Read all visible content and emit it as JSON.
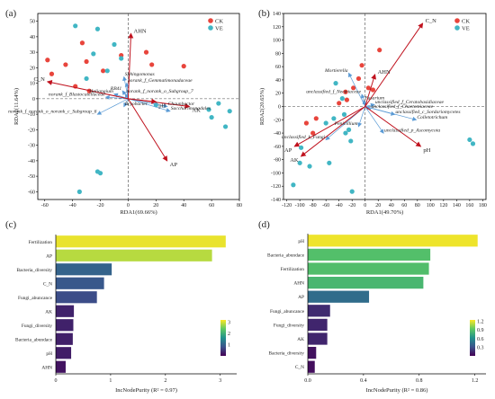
{
  "colors": {
    "CK": "#e8453c",
    "VE": "#41b6c4",
    "arrow_env": "#c0121e",
    "arrow_taxa": "#5b9bd5",
    "spine": "#000000"
  },
  "chart_data": [
    {
      "panel": "(a)",
      "type": "scatter",
      "xlabel": "RDA1(69.66%)",
      "ylabel": "RDA2(11.64%)",
      "xlim": [
        -65,
        80
      ],
      "ylim": [
        -65,
        55
      ],
      "xticks": [
        "-60",
        "-40",
        "-20",
        "0",
        "20",
        "40",
        "60",
        "80"
      ],
      "yticks": [
        "-60",
        "-50",
        "-40",
        "-30",
        "-20",
        "-10",
        "0",
        "10",
        "20",
        "30",
        "40",
        "50"
      ],
      "legend": [
        "CK",
        "VE"
      ],
      "points": {
        "CK": [
          [
            -58,
            25
          ],
          [
            -55,
            16
          ],
          [
            -45,
            22
          ],
          [
            -33,
            36
          ],
          [
            -30,
            24
          ],
          [
            -18,
            18
          ],
          [
            -5,
            28
          ],
          [
            13,
            30
          ],
          [
            17,
            22
          ],
          [
            40,
            21
          ],
          [
            -38,
            8
          ],
          [
            -28,
            5
          ]
        ],
        "VE": [
          [
            -38,
            47
          ],
          [
            -22,
            45
          ],
          [
            -25,
            29
          ],
          [
            -15,
            18
          ],
          [
            -10,
            35
          ],
          [
            -5,
            26
          ],
          [
            -30,
            13
          ],
          [
            58,
            -7
          ],
          [
            60,
            -12
          ],
          [
            65,
            -3
          ],
          [
            70,
            -18
          ],
          [
            73,
            -8
          ],
          [
            -20,
            -48
          ],
          [
            -22,
            -47
          ],
          [
            -35,
            -60
          ],
          [
            20,
            -4
          ]
        ]
      },
      "env_arrows": [
        {
          "label": "AHN",
          "x": 2,
          "y": 42
        },
        {
          "label": "C_N",
          "x": -58,
          "y": 11
        },
        {
          "label": "pH",
          "x": 20,
          "y": -2
        },
        {
          "label": "AK",
          "x": 44,
          "y": -5
        },
        {
          "label": "AP",
          "x": 28,
          "y": -40
        }
      ],
      "taxa_arrows": [
        {
          "label": "Sphingomonas",
          "x": -3,
          "y": 14
        },
        {
          "label": "norank_f_Gemmatimonadaceae",
          "x": -1,
          "y": 10
        },
        {
          "label": "RB41",
          "x": -4,
          "y": 5
        },
        {
          "label": "norank_f_norank_o_Subgroup_7",
          "x": -2,
          "y": 3
        },
        {
          "label": "Haliangium",
          "x": -10,
          "y": 3
        },
        {
          "label": "norank_f_Blastocatellaceae",
          "x": -16,
          "y": 1
        },
        {
          "label": "Bryobacter",
          "x": -3,
          "y": -5
        },
        {
          "label": "Chaunbactor",
          "x": 28,
          "y": -5
        },
        {
          "label": "Saccharimonadales",
          "x": 30,
          "y": -8
        },
        {
          "label": "norank_f_norank_o_norank_c_Subgroup_6",
          "x": -22,
          "y": -10
        }
      ]
    },
    {
      "panel": "(b)",
      "type": "scatter",
      "xlabel": "RDA1(49.70%)",
      "ylabel": "RDA2(20.65%)",
      "xlim": [
        -125,
        185
      ],
      "ylim": [
        -140,
        140
      ],
      "xticks": [
        "-120",
        "-100",
        "-80",
        "-60",
        "-40",
        "-20",
        "0",
        "20",
        "40",
        "60",
        "80",
        "100",
        "120",
        "140",
        "160",
        "180"
      ],
      "yticks": [
        "-140",
        "-120",
        "-100",
        "-80",
        "-60",
        "-40",
        "-20",
        "0",
        "20",
        "40",
        "60",
        "80",
        "100",
        "120",
        "140"
      ],
      "legend": [
        "CK",
        "VE"
      ],
      "points": {
        "CK": [
          [
            -90,
            -25
          ],
          [
            -80,
            -40
          ],
          [
            -75,
            -18
          ],
          [
            -40,
            5
          ],
          [
            -30,
            22
          ],
          [
            -28,
            10
          ],
          [
            -18,
            28
          ],
          [
            -10,
            42
          ],
          [
            5,
            28
          ],
          [
            12,
            25
          ],
          [
            22,
            85
          ],
          [
            -5,
            62
          ]
        ],
        "VE": [
          [
            -110,
            -118
          ],
          [
            -100,
            -85
          ],
          [
            -98,
            -62
          ],
          [
            -85,
            -90
          ],
          [
            -60,
            -25
          ],
          [
            -55,
            -85
          ],
          [
            -48,
            -18
          ],
          [
            -35,
            12
          ],
          [
            -30,
            -40
          ],
          [
            -22,
            -52
          ],
          [
            -20,
            -128
          ],
          [
            -25,
            -35
          ],
          [
            160,
            -50
          ],
          [
            165,
            -56
          ],
          [
            -45,
            35
          ],
          [
            -32,
            -12
          ]
        ]
      },
      "env_arrows": [
        {
          "label": "C_N",
          "x": 88,
          "y": 125
        },
        {
          "label": "AHN",
          "x": 15,
          "y": 48
        },
        {
          "label": "pH",
          "x": 85,
          "y": -60
        },
        {
          "label": "AP",
          "x": -108,
          "y": -60
        },
        {
          "label": "AK",
          "x": -98,
          "y": -75
        }
      ],
      "taxa_arrows": [
        {
          "label": "Mortierella",
          "x": -25,
          "y": 50
        },
        {
          "label": "unclassified_f_Nectriaceae",
          "x": -5,
          "y": 18
        },
        {
          "label": "Fusarium",
          "x": -2,
          "y": 9
        },
        {
          "label": "unclassified_f_Ceratobasidiaceae",
          "x": 14,
          "y": 3
        },
        {
          "label": "unclassified_f_Chaetomiaceae",
          "x": 8,
          "y": -4
        },
        {
          "label": "unclassified_c_Sordariomycetes",
          "x": 45,
          "y": -12
        },
        {
          "label": "Colletotrichum",
          "x": 78,
          "y": -20
        },
        {
          "label": "Penicillium",
          "x": -10,
          "y": -30
        },
        {
          "label": "unclassified_p_Ascomycota",
          "x": 28,
          "y": -40
        },
        {
          "label": "unclassified_k_Fungi",
          "x": -60,
          "y": -50
        }
      ]
    },
    {
      "panel": "(c)",
      "type": "bar",
      "orientation": "horizontal",
      "xlabel": "IncNodePurity (R² = 0.97)",
      "xlim": [
        0,
        3.3
      ],
      "xticks": [
        "0",
        "1",
        "2",
        "3"
      ],
      "categories": [
        "Fertilization",
        "AP",
        "Bacteria_diversity",
        "C_N",
        "Fungi_abuncance",
        "AK",
        "Fungi_diversity",
        "Bacteria_abundace",
        "pH",
        "AHN"
      ],
      "values": [
        3.1,
        2.85,
        1.02,
        0.88,
        0.75,
        0.33,
        0.32,
        0.31,
        0.28,
        0.18
      ],
      "colorbar": {
        "ticks": [
          "3",
          "2",
          "1"
        ],
        "range": [
          0,
          3.2
        ],
        "palette": "viridis"
      }
    },
    {
      "panel": "(d)",
      "type": "bar",
      "orientation": "horizontal",
      "xlabel": "IncNodePurity (R² = 0.86)",
      "xlim": [
        0,
        1.28
      ],
      "xticks": [
        "0.0",
        "0.4",
        "0.8",
        "1.2"
      ],
      "categories": [
        "pH",
        "Bacteria_abundace",
        "Fertilization",
        "AHN",
        "AP",
        "Fungi_abuncance",
        "Fungi_diversity",
        "AK",
        "Bacteria_diversity",
        "C_N"
      ],
      "values": [
        1.22,
        0.88,
        0.87,
        0.83,
        0.44,
        0.16,
        0.14,
        0.14,
        0.06,
        0.05
      ],
      "colorbar": {
        "ticks": [
          "0.3",
          "0.6",
          "0.9",
          "1.2"
        ],
        "range": [
          0,
          1.25
        ],
        "palette": "viridis"
      }
    }
  ]
}
